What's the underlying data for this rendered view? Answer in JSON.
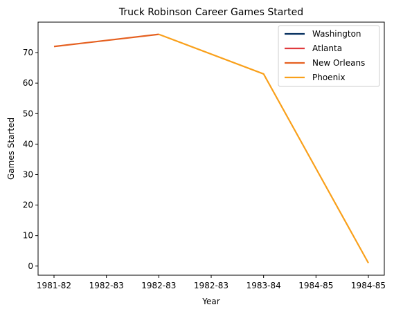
{
  "chart_data": {
    "type": "line",
    "title": "Truck Robinson Career Games Started",
    "xlabel": "Year",
    "ylabel": "Games Started",
    "categories": [
      "1981-82",
      "1982-83",
      "1982-83",
      "1982-83",
      "1983-84",
      "1984-85",
      "1984-85"
    ],
    "x_index_range": [
      0,
      6
    ],
    "ylim": [
      -3,
      80
    ],
    "yticks": [
      0,
      10,
      20,
      30,
      40,
      50,
      60,
      70
    ],
    "grid": false,
    "legend_position": "top-right",
    "series": [
      {
        "name": "Washington",
        "color": "#002b5c",
        "points": []
      },
      {
        "name": "Atlanta",
        "color": "#e03a3e",
        "points": []
      },
      {
        "name": "New Orleans",
        "color": "#e56020",
        "points": [
          [
            0,
            72
          ],
          [
            2,
            76
          ]
        ]
      },
      {
        "name": "Phoenix",
        "color": "#f9a01b",
        "points": [
          [
            2,
            76
          ],
          [
            4,
            63
          ],
          [
            6,
            1
          ]
        ]
      }
    ]
  }
}
